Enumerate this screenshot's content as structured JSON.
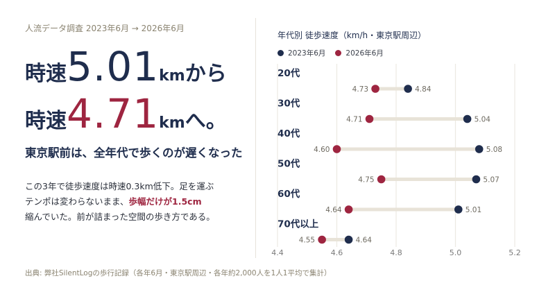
{
  "eyebrow": "人流データ調査  2023年6月 → 2026年6月",
  "headline1": {
    "pre": "時速",
    "num": "5.01",
    "unit": "km",
    "post": "から"
  },
  "headline2": {
    "pre": "時速",
    "num": "4.71",
    "unit": "km",
    "post": "へ。"
  },
  "subheading": "東京駅前は、全年代で歩くのが遅くなった",
  "body": {
    "line1": "この3年で徒歩速度は時速0.3km低下。足を運ぶ",
    "line2_pre": "テンポは変わらないまま、",
    "line2_hl": "歩幅だけが1.5cm",
    "line3": "縮んでいた。前が詰まった空間の歩き方である。"
  },
  "source": "出典: 弊社SilentLogの歩行記録（各年6月・東京駅周辺・各年約2,000人を1人1平均で集計）",
  "colors": {
    "navy": "#1f2d4d",
    "crimson": "#9e2540",
    "connector": "#e8e3d8",
    "grid": "#ece9e2"
  },
  "chart_data": {
    "type": "dumbbell",
    "title": "年代別  徒歩速度（km/h・東京駅周辺）",
    "legend": [
      {
        "name": "2023年6月",
        "color": "#1f2d4d"
      },
      {
        "name": "2026年6月",
        "color": "#9e2540"
      }
    ],
    "xlim": [
      4.4,
      5.2
    ],
    "xticks": [
      "4.4",
      "4.6",
      "4.8",
      "5.0",
      "5.2"
    ],
    "grid": true,
    "categories": [
      "20代",
      "30代",
      "40代",
      "50代",
      "60代",
      "70代以上"
    ],
    "series": [
      {
        "name": "2023年6月",
        "values": [
          4.84,
          5.04,
          5.08,
          5.07,
          5.01,
          4.64
        ],
        "labels": [
          "4.84",
          "5.04",
          "5.08",
          "5.07",
          "5.01",
          "4.64"
        ]
      },
      {
        "name": "2026年6月",
        "values": [
          4.73,
          4.71,
          4.6,
          4.75,
          4.64,
          4.55
        ],
        "labels": [
          "4.73",
          "4.71",
          "4.60",
          "4.75",
          "4.64",
          "4.55"
        ]
      }
    ]
  }
}
